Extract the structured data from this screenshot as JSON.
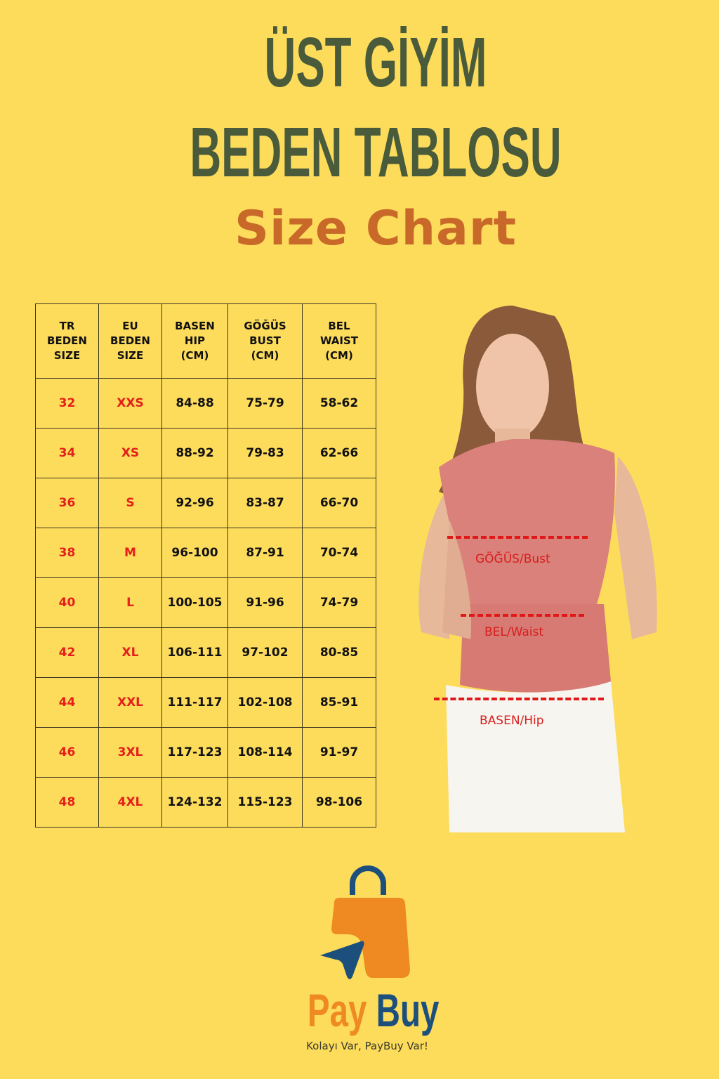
{
  "title": {
    "line1": "ÜST GİYİM",
    "line2": "BEDEN TABLOSU",
    "subtitle": "Size Chart"
  },
  "table": {
    "headers": [
      "TR\nBEDEN\nSIZE",
      "EU\nBEDEN\nSIZE",
      "BASEN\nHIP\n(CM)",
      "GÖĞÜS\nBUST\n(CM)",
      "BEL\nWAIST\n(CM)"
    ],
    "rows": [
      [
        "32",
        "XXS",
        "84-88",
        "75-79",
        "58-62"
      ],
      [
        "34",
        "XS",
        "88-92",
        "79-83",
        "62-66"
      ],
      [
        "36",
        "S",
        "92-96",
        "83-87",
        "66-70"
      ],
      [
        "38",
        "M",
        "96-100",
        "87-91",
        "70-74"
      ],
      [
        "40",
        "L",
        "100-105",
        "91-96",
        "74-79"
      ],
      [
        "42",
        "XL",
        "106-111",
        "97-102",
        "80-85"
      ],
      [
        "44",
        "XXL",
        "111-117",
        "102-108",
        "85-91"
      ],
      [
        "46",
        "3XL",
        "117-123",
        "108-114",
        "91-97"
      ],
      [
        "48",
        "4XL",
        "124-132",
        "115-123",
        "98-106"
      ]
    ]
  },
  "model_labels": {
    "bust": "GÖĞÜS/Bust",
    "waist": "BEL/Waist",
    "hip": "BASEN/Hip"
  },
  "logo": {
    "pay": "Pay",
    "buy": "Buy",
    "tagline": "Kolayı Var, PayBuy Var!"
  },
  "colors": {
    "background": "#fddc5c",
    "title": "#4a5b3c",
    "subtitle": "#c8692a",
    "size_text": "#e3201b",
    "logo_orange": "#ef8a22",
    "logo_blue": "#1d4f7c"
  }
}
